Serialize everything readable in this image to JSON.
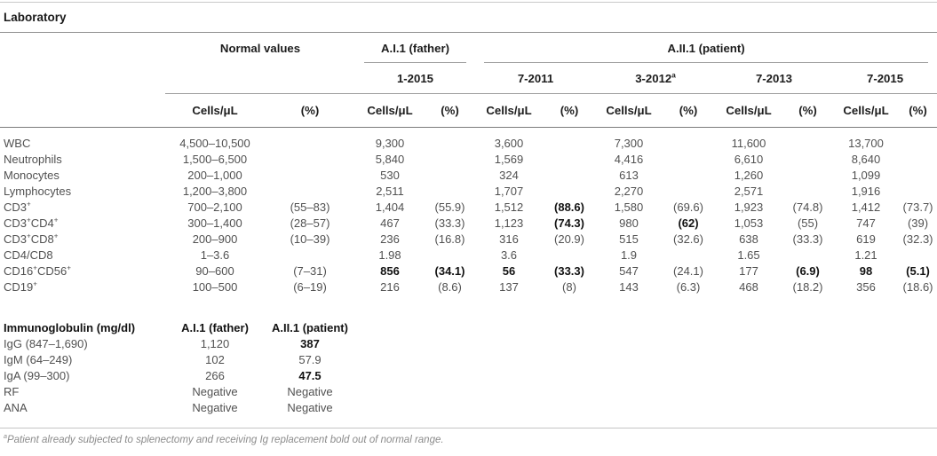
{
  "page": {
    "title": "Laboratory",
    "footnote": "{a}Patient already subjected to splenectomy and receiving Ig replacement bold out of normal range."
  },
  "table": {
    "groups": [
      {
        "label": "Normal values",
        "span": 2,
        "rule": false
      },
      {
        "label": "A.I.1 (father)",
        "span": 2,
        "rule": true
      },
      {
        "label": "A.II.1 (patient)",
        "span": 8,
        "rule": true
      }
    ],
    "dates": [
      {
        "label": "1-2015",
        "span": 2
      },
      {
        "label": "7-2011",
        "span": 2
      },
      {
        "label": "3-2012{a}",
        "span": 2
      },
      {
        "label": "7-2013",
        "span": 2
      },
      {
        "label": "7-2015",
        "span": 2
      }
    ],
    "units": {
      "cells": "Cells/μL",
      "pct": "(%)"
    },
    "rows": [
      {
        "label": "WBC",
        "values": [
          "4,500–10,500",
          "",
          "9,300",
          "",
          "3,600",
          "",
          "7,300",
          "",
          "11,600",
          "",
          "13,700",
          ""
        ],
        "bold": []
      },
      {
        "label": "Neutrophils",
        "values": [
          "1,500–6,500",
          "",
          "5,840",
          "",
          "1,569",
          "",
          "4,416",
          "",
          "6,610",
          "",
          "8,640",
          ""
        ],
        "bold": []
      },
      {
        "label": "Monocytes",
        "values": [
          "200–1,000",
          "",
          "530",
          "",
          "324",
          "",
          "613",
          "",
          "1,260",
          "",
          "1,099",
          ""
        ],
        "bold": []
      },
      {
        "label": "Lymphocytes",
        "values": [
          "1,200–3,800",
          "",
          "2,511",
          "",
          "1,707",
          "",
          "2,270",
          "",
          "2,571",
          "",
          "1,916",
          ""
        ],
        "bold": []
      },
      {
        "label": "CD3{+}",
        "values": [
          "700–2,100",
          "(55–83)",
          "1,404",
          "(55.9)",
          "1,512",
          "(88.6)",
          "1,580",
          "(69.6)",
          "1,923",
          "(74.8)",
          "1,412",
          "(73.7)"
        ],
        "bold": [
          5
        ]
      },
      {
        "label": "CD3{+}CD4{+}",
        "values": [
          "300–1,400",
          "(28–57)",
          "467",
          "(33.3)",
          "1,123",
          "(74.3)",
          "980",
          "(62)",
          "1,053",
          "(55)",
          "747",
          "(39)"
        ],
        "bold": [
          5,
          7
        ]
      },
      {
        "label": "CD3{+}CD8{+}",
        "values": [
          "200–900",
          "(10–39)",
          "236",
          "(16.8)",
          "316",
          "(20.9)",
          "515",
          "(32.6)",
          "638",
          "(33.3)",
          "619",
          "(32.3)"
        ],
        "bold": []
      },
      {
        "label": "CD4/CD8",
        "values": [
          "1–3.6",
          "",
          "1.98",
          "",
          "3.6",
          "",
          "1.9",
          "",
          "1.65",
          "",
          "1.21",
          ""
        ],
        "bold": []
      },
      {
        "label": "CD16{+}CD56{+}",
        "values": [
          "90–600",
          "(7–31)",
          "856",
          "(34.1)",
          "56",
          "(33.3)",
          "547",
          "(24.1)",
          "177",
          "(6.9)",
          "98",
          "(5.1)"
        ],
        "bold": [
          2,
          3,
          4,
          5,
          9,
          10,
          11
        ]
      },
      {
        "label": "CD19{+}",
        "values": [
          "100–500",
          "(6–19)",
          "216",
          "(8.6)",
          "137",
          "(8)",
          "143",
          "(6.3)",
          "468",
          "(18.2)",
          "356",
          "(18.6)"
        ],
        "bold": []
      }
    ],
    "ig_section": {
      "header": {
        "label": "Immunoglobulin (mg/dl)",
        "father": "A.I.1 (father)",
        "patient": "A.II.1 (patient)"
      },
      "rows": [
        {
          "label": "IgG (847–1,690)",
          "father": "1,120",
          "patient": "387",
          "bold_patient": true
        },
        {
          "label": "IgM (64–249)",
          "father": "102",
          "patient": "57.9",
          "bold_patient": false
        },
        {
          "label": "IgA (99–300)",
          "father": "266",
          "patient": "47.5",
          "bold_patient": true
        },
        {
          "label": "RF",
          "father": "Negative",
          "patient": "Negative",
          "bold_patient": false
        },
        {
          "label": "ANA",
          "father": "Negative",
          "patient": "Negative",
          "bold_patient": false
        }
      ]
    }
  }
}
